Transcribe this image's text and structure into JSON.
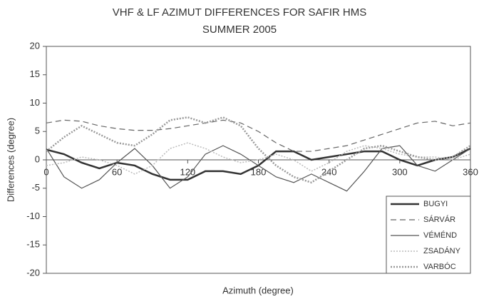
{
  "chart_data": {
    "type": "line",
    "title": "VHF & LF AZIMUT DIFFERENCES  FOR  SAFIR HMS",
    "subtitle": "SUMMER  2005",
    "x_label": "Azimuth (degree)",
    "y_label": "Differences (degree)",
    "x": [
      0,
      15,
      30,
      45,
      60,
      75,
      90,
      105,
      120,
      135,
      150,
      165,
      180,
      195,
      210,
      225,
      240,
      255,
      270,
      285,
      300,
      315,
      330,
      345,
      360
    ],
    "xlim": [
      0,
      360
    ],
    "xticks": [
      0,
      60,
      120,
      180,
      240,
      300,
      360
    ],
    "ylim": [
      -20,
      20
    ],
    "yticks": [
      -20,
      -15,
      -10,
      -5,
      0,
      5,
      10,
      15,
      20
    ],
    "grid": false,
    "legend": "lower right",
    "series": [
      {
        "name": "BUGYI",
        "color": "#333333",
        "width": 2.5,
        "style": "solid",
        "values": [
          1.8,
          1,
          -0.5,
          -1.5,
          -0.5,
          -1,
          -2.5,
          -3.5,
          -3.5,
          -2,
          -2,
          -2.5,
          -1,
          1.5,
          1.5,
          0,
          0.5,
          1,
          1.5,
          1.5,
          0,
          -1,
          0,
          0.5,
          2
        ]
      },
      {
        "name": "SÁRVÁR",
        "color": "#666666",
        "width": 1.2,
        "style": "dashed",
        "values": [
          6.5,
          7,
          6.8,
          6,
          5.5,
          5.2,
          5.2,
          5.5,
          6,
          6.5,
          7,
          6.5,
          5,
          3,
          1.5,
          1.5,
          2,
          2.5,
          3.5,
          4.5,
          5.5,
          6.5,
          6.8,
          6,
          6.5
        ]
      },
      {
        "name": "VÉMÉND",
        "color": "#555555",
        "width": 1.2,
        "style": "solid",
        "values": [
          2,
          -3,
          -5,
          -3.5,
          -0.5,
          2,
          -1,
          -5,
          -3,
          1,
          2.5,
          1,
          -1,
          -3,
          -4,
          -2.5,
          -4,
          -5.5,
          -2,
          2,
          2.5,
          -1,
          -2,
          0,
          2
        ]
      },
      {
        "name": "ZSADÁNY",
        "color": "#bbbbbb",
        "width": 1.5,
        "style": "dotted",
        "values": [
          -1,
          -0.5,
          0.5,
          0,
          -1,
          -2.5,
          -1,
          2,
          3,
          2,
          0.5,
          -0.5,
          0,
          1,
          0,
          -2,
          -0.5,
          1.5,
          2.5,
          2,
          1,
          0.5,
          0.5,
          0,
          1
        ]
      },
      {
        "name": "VARBÓC",
        "color": "#999999",
        "width": 2.5,
        "style": "dotted",
        "values": [
          1.5,
          4,
          6,
          4.5,
          3,
          2.5,
          4.5,
          7,
          7.5,
          6.5,
          7.5,
          6,
          2,
          -1,
          -3,
          -4,
          -2,
          0,
          2,
          2.5,
          1.5,
          0.5,
          0,
          0.5,
          2.5
        ]
      }
    ]
  }
}
